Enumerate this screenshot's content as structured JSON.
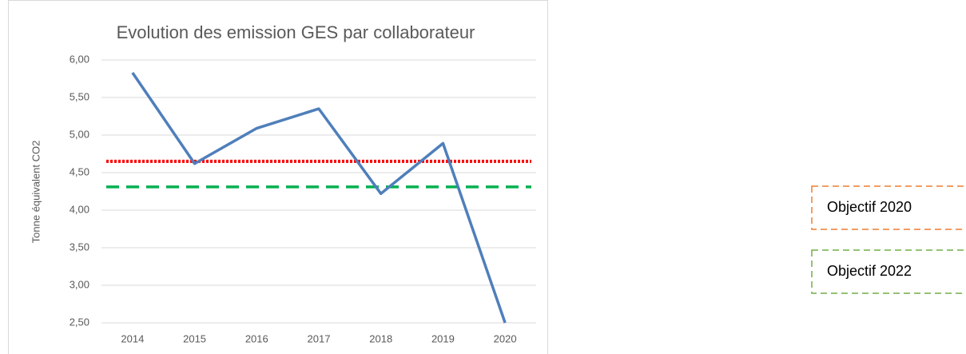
{
  "chart_data": {
    "type": "line",
    "title": "Evolution des emission GES par collaborateur",
    "y_label": "Tonne équivalent CO2",
    "categories": [
      "2014",
      "2015",
      "2016",
      "2017",
      "2018",
      "2019",
      "2020"
    ],
    "series": [
      {
        "color": "#4f7fbb",
        "values": [
          5.83,
          4.62,
          5.09,
          5.35,
          4.22,
          4.89,
          2.5
        ]
      }
    ],
    "ylim": [
      2.5,
      6
    ],
    "yticks": [
      {
        "value": 2.5,
        "label": "2,50"
      },
      {
        "value": 3,
        "label": "3,00"
      },
      {
        "value": 3.5,
        "label": "3,50"
      },
      {
        "value": 4,
        "label": "4,00"
      },
      {
        "value": 4.5,
        "label": "4,50"
      },
      {
        "value": 5,
        "label": "5,00"
      },
      {
        "value": 5.5,
        "label": "5,50"
      },
      {
        "value": 6,
        "label": "6,00"
      }
    ],
    "grid": true,
    "reference_lines": [
      {
        "value": 4.65,
        "color": "#ff0000",
        "style": "dotted"
      },
      {
        "value": 4.31,
        "color": "#00b050",
        "style": "dashed"
      }
    ],
    "annotations": [
      {
        "text": "Objectif 2020",
        "color": "#ed7d31"
      },
      {
        "text": "Objectif 2022",
        "color": "#70ad47"
      }
    ]
  }
}
